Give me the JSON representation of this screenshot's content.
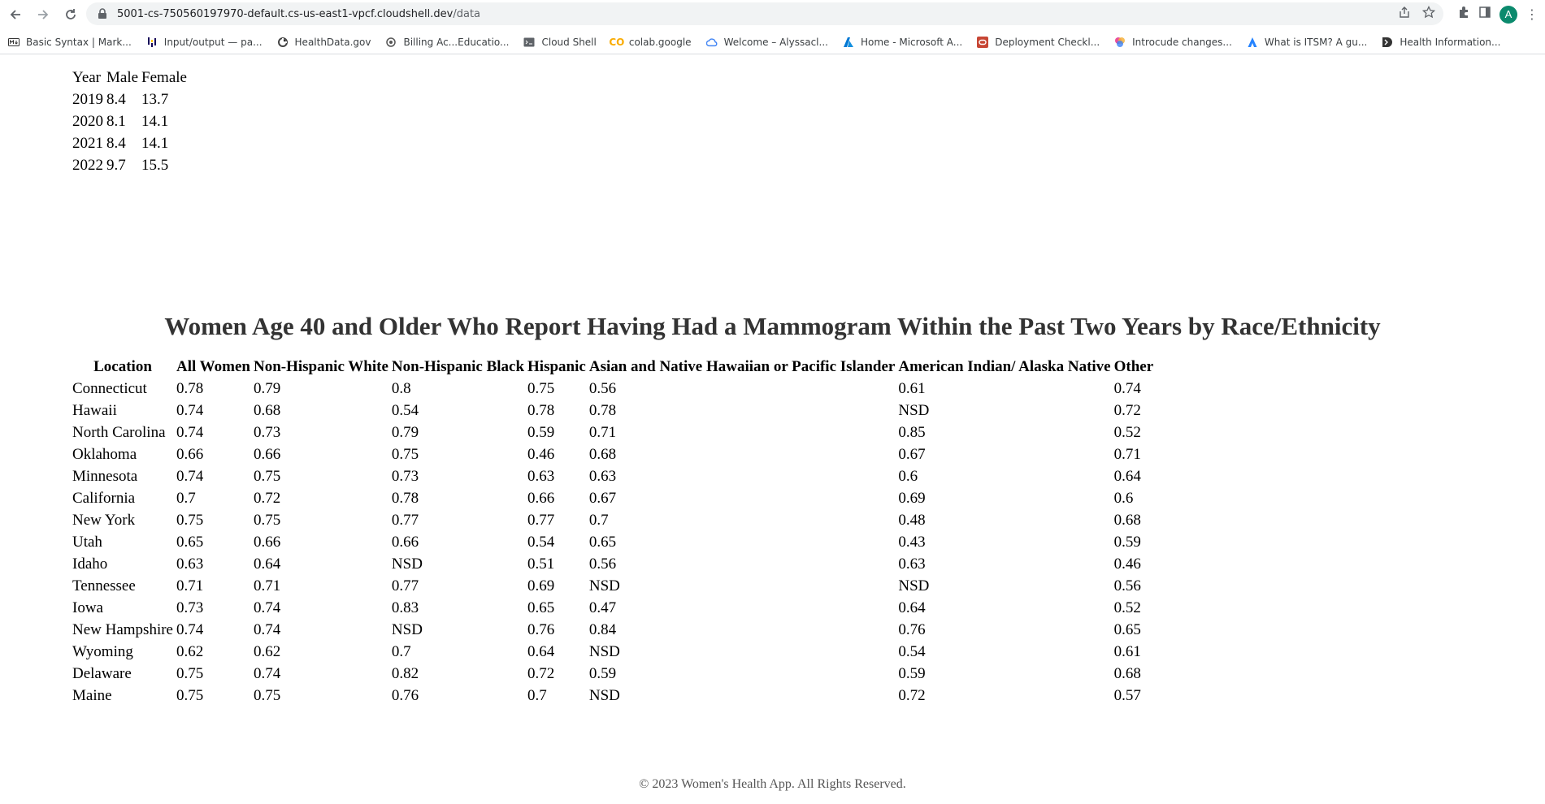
{
  "browser": {
    "url_host": "5001-cs-750560197970-default.cs-us-east1-vpcf.cloudshell.dev",
    "url_path": "/data",
    "profile_initial": "A",
    "bookmarks": [
      {
        "label": "Basic Syntax | Mark...",
        "icon": "markdown-icon"
      },
      {
        "label": "Input/output — pa...",
        "icon": "pandas-icon"
      },
      {
        "label": "HealthData.gov",
        "icon": "healthdata-icon"
      },
      {
        "label": "Billing Ac...Educatio...",
        "icon": "billing-icon"
      },
      {
        "label": "Cloud Shell",
        "icon": "cloud-shell-icon"
      },
      {
        "label": "colab.google",
        "icon": "colab-icon"
      },
      {
        "label": "Welcome – Alyssacl...",
        "icon": "google-cloud-icon"
      },
      {
        "label": "Home - Microsoft A...",
        "icon": "azure-icon"
      },
      {
        "label": "Deployment Checkl...",
        "icon": "oracle-icon"
      },
      {
        "label": "Introcude changes...",
        "icon": "copilot-icon"
      },
      {
        "label": "What is ITSM? A gu...",
        "icon": "atlassian-icon"
      },
      {
        "label": "Health Information...",
        "icon": "health-info-icon"
      }
    ]
  },
  "gender_table": {
    "headers": [
      "Year",
      "Male",
      "Female"
    ],
    "rows": [
      [
        "2019",
        "8.4",
        "13.7"
      ],
      [
        "2020",
        "8.1",
        "14.1"
      ],
      [
        "2021",
        "8.4",
        "14.1"
      ],
      [
        "2022",
        "9.7",
        "15.5"
      ]
    ]
  },
  "mammogram": {
    "title": "Women Age 40 and Older Who Report Having Had a Mammogram Within the Past Two Years by Race/Ethnicity",
    "headers": [
      "Location",
      "All Women",
      "Non-Hispanic White",
      "Non-Hispanic Black",
      "Hispanic",
      "Asian and Native Hawaiian or Pacific Islander",
      "American Indian/ Alaska Native",
      "Other"
    ],
    "rows": [
      [
        "Connecticut",
        "0.78",
        "0.79",
        "0.8",
        "0.75",
        "0.56",
        "0.61",
        "0.74"
      ],
      [
        "Hawaii",
        "0.74",
        "0.68",
        "0.54",
        "0.78",
        "0.78",
        "NSD",
        "0.72"
      ],
      [
        "North Carolina",
        "0.74",
        "0.73",
        "0.79",
        "0.59",
        "0.71",
        "0.85",
        "0.52"
      ],
      [
        "Oklahoma",
        "0.66",
        "0.66",
        "0.75",
        "0.46",
        "0.68",
        "0.67",
        "0.71"
      ],
      [
        "Minnesota",
        "0.74",
        "0.75",
        "0.73",
        "0.63",
        "0.63",
        "0.6",
        "0.64"
      ],
      [
        "California",
        "0.7",
        "0.72",
        "0.78",
        "0.66",
        "0.67",
        "0.69",
        "0.6"
      ],
      [
        "New York",
        "0.75",
        "0.75",
        "0.77",
        "0.77",
        "0.7",
        "0.48",
        "0.68"
      ],
      [
        "Utah",
        "0.65",
        "0.66",
        "0.66",
        "0.54",
        "0.65",
        "0.43",
        "0.59"
      ],
      [
        "Idaho",
        "0.63",
        "0.64",
        "NSD",
        "0.51",
        "0.56",
        "0.63",
        "0.46"
      ],
      [
        "Tennessee",
        "0.71",
        "0.71",
        "0.77",
        "0.69",
        "NSD",
        "NSD",
        "0.56"
      ],
      [
        "Iowa",
        "0.73",
        "0.74",
        "0.83",
        "0.65",
        "0.47",
        "0.64",
        "0.52"
      ],
      [
        "New Hampshire",
        "0.74",
        "0.74",
        "NSD",
        "0.76",
        "0.84",
        "0.76",
        "0.65"
      ],
      [
        "Wyoming",
        "0.62",
        "0.62",
        "0.7",
        "0.64",
        "NSD",
        "0.54",
        "0.61"
      ],
      [
        "Delaware",
        "0.75",
        "0.74",
        "0.82",
        "0.72",
        "0.59",
        "0.59",
        "0.68"
      ],
      [
        "Maine",
        "0.75",
        "0.75",
        "0.76",
        "0.7",
        "NSD",
        "0.72",
        "0.57"
      ]
    ]
  },
  "footer": "© 2023 Women's Health App. All Rights Reserved."
}
